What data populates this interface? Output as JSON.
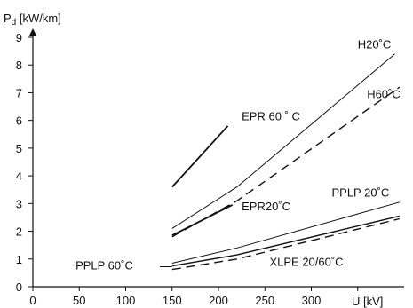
{
  "chart_data": {
    "type": "line",
    "xlabel": "U [kV]",
    "ylabel_main": "P",
    "ylabel_sub": "d",
    "ylabel_unit": " [kW/km]",
    "xlim": [
      0,
      400
    ],
    "ylim": [
      0,
      9
    ],
    "x_ticks": [
      0,
      50,
      100,
      150,
      200,
      250,
      300
    ],
    "y_ticks": [
      0,
      1,
      2,
      3,
      4,
      5,
      6,
      7,
      8,
      9
    ],
    "series": [
      {
        "name": "EPR 60 ˚ C",
        "style": "solid",
        "width": 1.8,
        "x": [
          150,
          210
        ],
        "y": [
          3.6,
          5.8
        ]
      },
      {
        "name": "H20˚C",
        "style": "solid",
        "width": 1.0,
        "x": [
          150,
          220,
          390
        ],
        "y": [
          2.1,
          3.6,
          8.4
        ]
      },
      {
        "name": "H60˚C",
        "style": "dashed",
        "width": 1.4,
        "x": [
          150,
          220,
          395
        ],
        "y": [
          1.8,
          3.1,
          7.2
        ]
      },
      {
        "name": "EPR20˚C",
        "style": "solid",
        "width": 1.8,
        "x": [
          150,
          215
        ],
        "y": [
          1.85,
          2.95
        ]
      },
      {
        "name": "PPLP 20˚C",
        "style": "solid",
        "width": 1.0,
        "x": [
          150,
          220,
          395
        ],
        "y": [
          0.85,
          1.4,
          3.05
        ]
      },
      {
        "name": "PPLP 60˚C",
        "style": "solid",
        "width": 1.4,
        "x": [
          150,
          220,
          395
        ],
        "y": [
          0.75,
          1.15,
          2.55
        ]
      },
      {
        "name": "XLPE 20/60˚C",
        "style": "dashed",
        "width": 1.4,
        "x": [
          150,
          220,
          395
        ],
        "y": [
          0.62,
          1.0,
          2.45
        ]
      }
    ],
    "labels": [
      {
        "text": "EPR 60 ˚ C",
        "x": 225,
        "y": 6.0
      },
      {
        "text": "H20˚C",
        "x": 350,
        "y": 8.6
      },
      {
        "text": "H60˚C",
        "x": 360,
        "y": 6.8
      },
      {
        "text": "EPR20˚C",
        "x": 225,
        "y": 2.75
      },
      {
        "text": "PPLP 20˚C",
        "x": 322,
        "y": 3.25
      },
      {
        "text": "PPLP 60˚C",
        "x": 46,
        "y": 0.62
      },
      {
        "text": "XLPE 20/60˚C",
        "x": 255,
        "y": 0.75
      }
    ],
    "pointer": {
      "x": [
        137,
        150
      ],
      "y": [
        0.72,
        0.72
      ]
    },
    "grid": false
  }
}
